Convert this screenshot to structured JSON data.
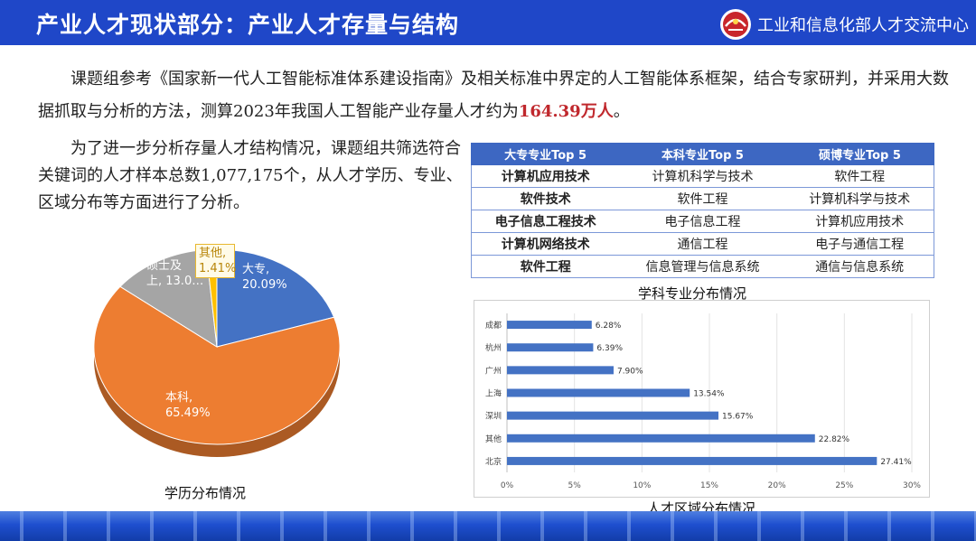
{
  "header": {
    "title": "产业人才现状部分：产业人才存量与结构",
    "org_name": "工业和信息化部人才交流中心",
    "brand_color": "#1f47c8",
    "logo_icon": "miit-talent-center-logo-icon"
  },
  "intro": {
    "text": "课题组参考《国家新一代人工智能标准体系建设指南》及相关标准中界定的人工智能体系框架，结合专家研判，并采用大数据抓取与分析的方法，测算2023年我国人工智能产业存量人才约为",
    "highlight": "164.39万人",
    "suffix": "。",
    "highlight_color": "#c0282d"
  },
  "paragraph2": "为了进一步分析存量人才结构情况，课题组共筛选符合关键词的人才样本总数1,077,175个，从人才学历、专业、区域分布等方面进行了分析。",
  "majors_table": {
    "headers": [
      "大专专业Top 5",
      "本科专业Top 5",
      "硕博专业Top 5"
    ],
    "rows": [
      [
        "计算机应用技术",
        "计算机科学与技术",
        "软件工程"
      ],
      [
        "软件技术",
        "软件工程",
        "计算机科学与技术"
      ],
      [
        "电子信息工程技术",
        "电子信息工程",
        "计算机应用技术"
      ],
      [
        "计算机网络技术",
        "通信工程",
        "电子与通信工程"
      ],
      [
        "软件工程",
        "信息管理与信息系统",
        "通信与信息系统"
      ]
    ],
    "caption": "学科专业分布情况"
  },
  "chart_data": [
    {
      "type": "pie",
      "caption": "学历分布情况",
      "slices": [
        {
          "label_line1": "大专,",
          "label_line2": "20.09%",
          "value": 20.09,
          "color": "#4472c4"
        },
        {
          "label_line1": "本科,",
          "label_line2": "65.49%",
          "value": 65.49,
          "color": "#ed7d31"
        },
        {
          "label_line1": "硕士及",
          "label_line2": "上, 13.0…",
          "value": 13.0,
          "color": "#a5a5a5"
        },
        {
          "label_line1": "其他,",
          "label_line2": "1.41%",
          "value": 1.41,
          "color": "#ffc000"
        }
      ]
    },
    {
      "type": "bar",
      "orientation": "horizontal",
      "caption": "人才区域分布情况",
      "categories": [
        "成都",
        "杭州",
        "广州",
        "上海",
        "深圳",
        "其他",
        "北京"
      ],
      "values": [
        6.28,
        6.39,
        7.9,
        13.54,
        15.67,
        22.82,
        27.41
      ],
      "value_labels": [
        "6.28%",
        "6.39%",
        "7.90%",
        "13.54%",
        "15.67%",
        "22.82%",
        "27.41%"
      ],
      "xlim": [
        0,
        30
      ],
      "xticks": [
        "0%",
        "5%",
        "10%",
        "15%",
        "20%",
        "25%",
        "30%"
      ],
      "color": "#4472c4"
    }
  ]
}
